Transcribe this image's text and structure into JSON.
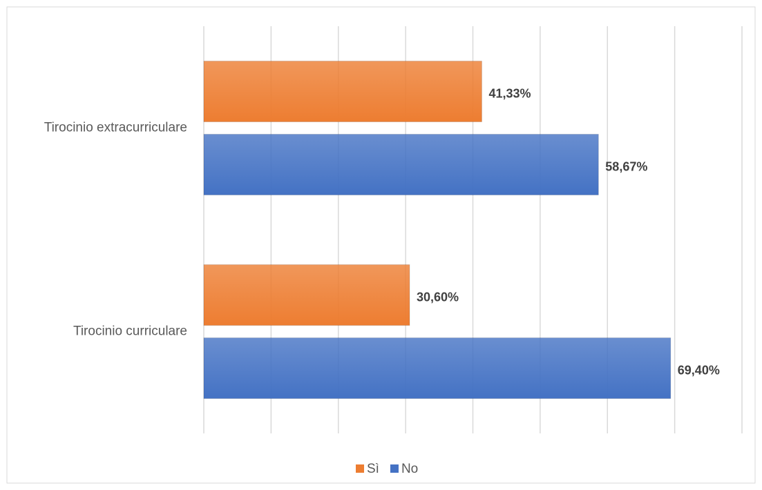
{
  "chart_data": {
    "type": "hbar",
    "categories": [
      "Tirocinio extracurriculare",
      "Tirocinio curriculare"
    ],
    "series": [
      {
        "name": "Sì",
        "color": "#ed7d31",
        "values": [
          41.33,
          30.6
        ],
        "value_labels": [
          "41,33%",
          "30,60%"
        ]
      },
      {
        "name": "No",
        "color": "#4472c4",
        "values": [
          58.67,
          69.4
        ],
        "value_labels": [
          "58,67%",
          "69,40%"
        ]
      }
    ],
    "xlim": [
      0,
      80
    ],
    "xticks": [
      0,
      10,
      20,
      30,
      40,
      50,
      60,
      70,
      80
    ],
    "grid": true,
    "legend": "bottom"
  }
}
